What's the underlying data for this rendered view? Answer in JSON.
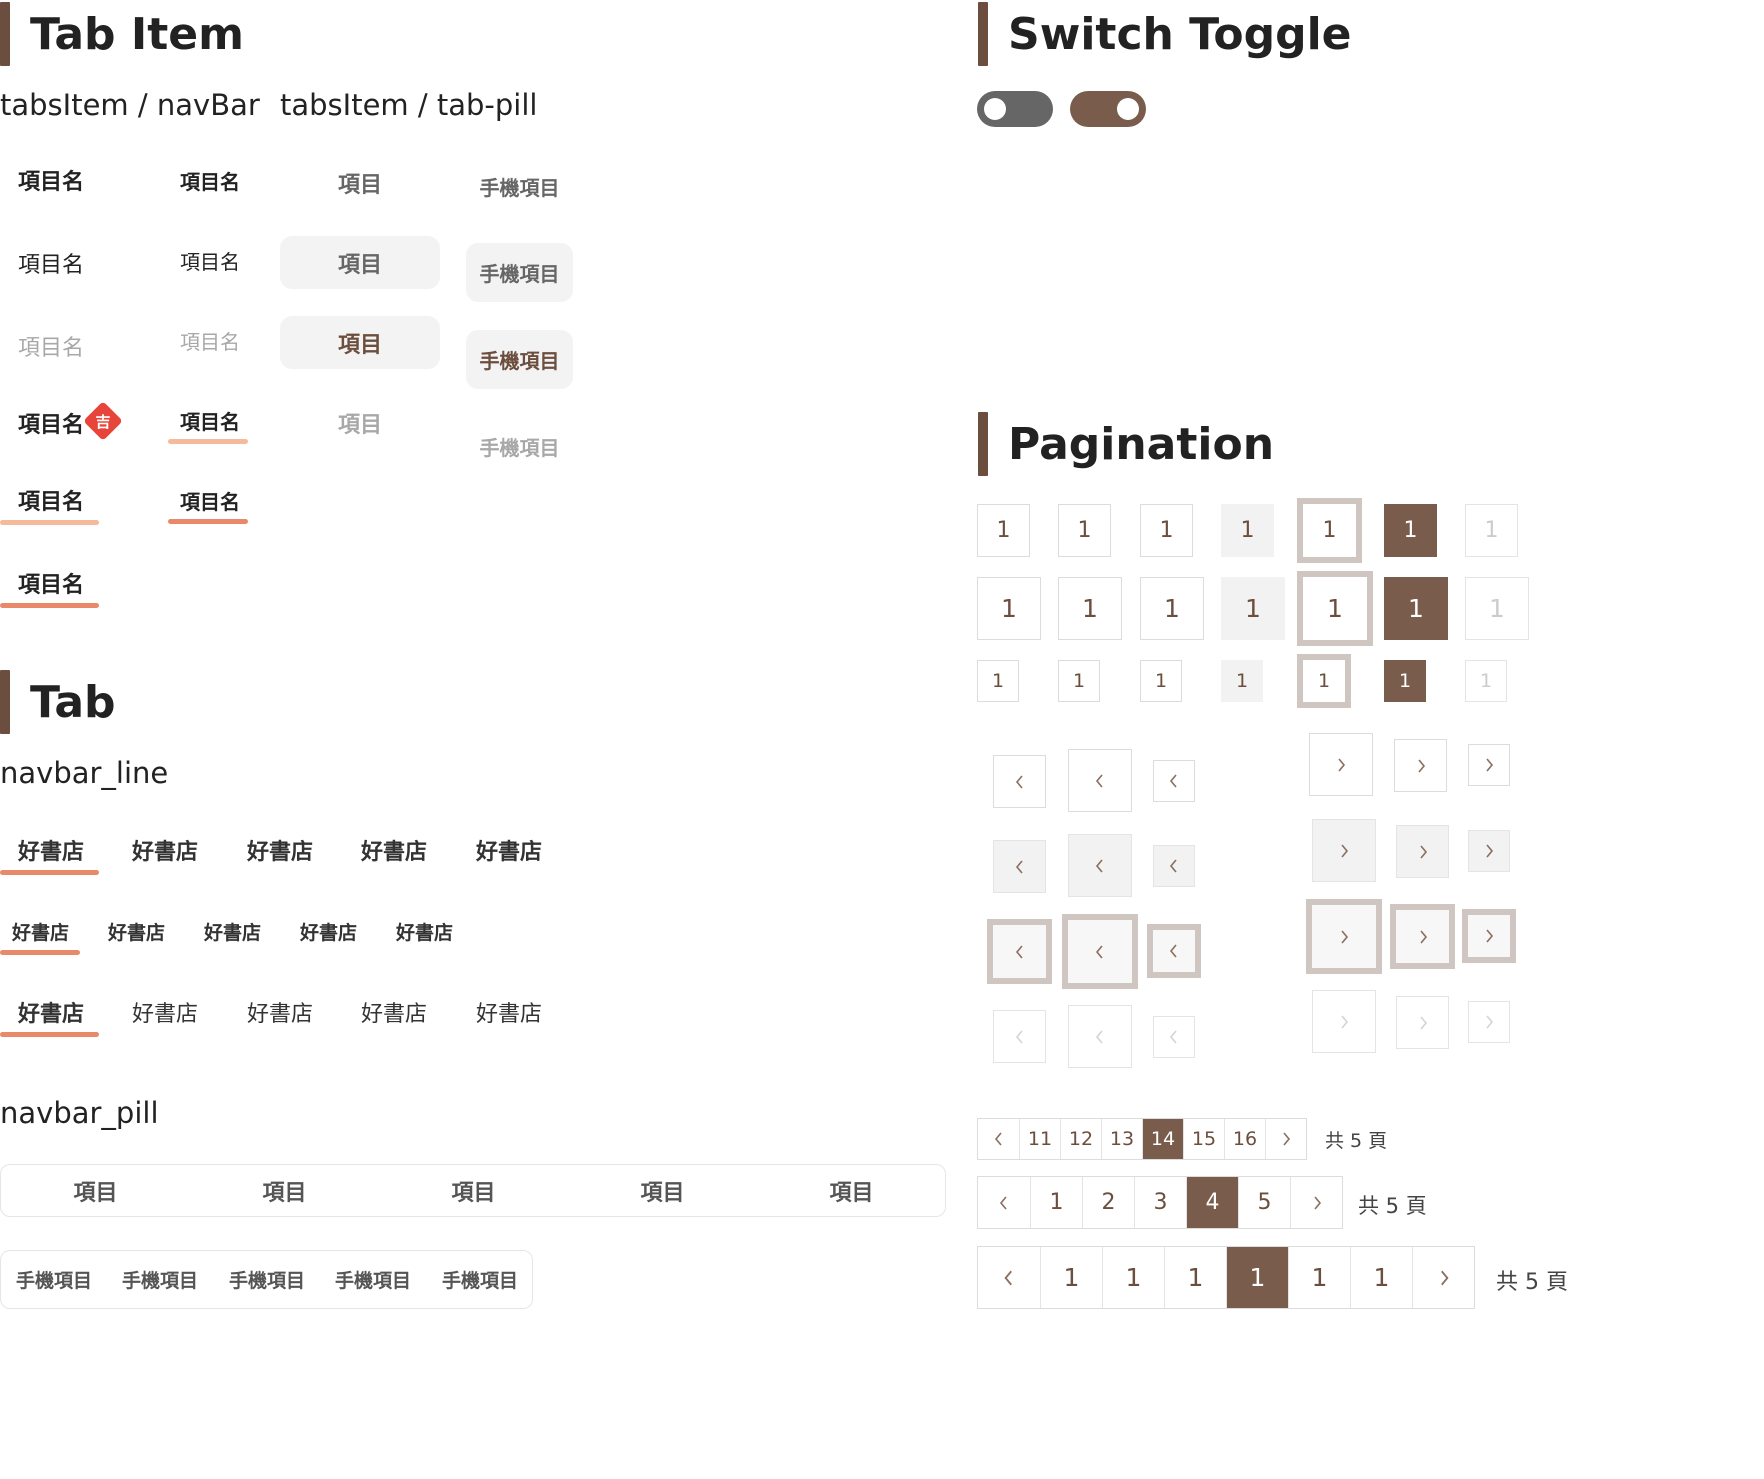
{
  "sections": {
    "tab_item": "Tab Item",
    "switch_toggle": "Switch Toggle",
    "pagination": "Pagination",
    "tab": "Tab"
  },
  "subtitles": {
    "tabs_navbar": "tabsItem / navBar",
    "tabs_pill": "tabsItem / tab-pill",
    "navbar_line": "navbar_line",
    "navbar_pill": "navbar_pill"
  },
  "tab_item": {
    "label": "項目名",
    "badge": "吉",
    "pill_label": "項目",
    "pill_mobile_label": "手機項目"
  },
  "switches": {
    "off_color": "#666666",
    "on_color": "#7a5c4c"
  },
  "navbar_line": {
    "tabs": [
      "好書店",
      "好書店",
      "好書店",
      "好書店",
      "好書店"
    ]
  },
  "navbar_pill": {
    "row1": [
      "項目",
      "項目",
      "項目",
      "項目",
      "項目"
    ],
    "row2": [
      "手機項目",
      "手機項目",
      "手機項目",
      "手機項目",
      "手機項目"
    ]
  },
  "pagination": {
    "digit": "1",
    "group1": {
      "pages": [
        "11",
        "12",
        "13",
        "14",
        "15",
        "16"
      ],
      "active": "14",
      "total": "共 5 頁"
    },
    "group2": {
      "pages": [
        "1",
        "2",
        "3",
        "4",
        "5"
      ],
      "active": "4",
      "total": "共 5 頁"
    },
    "group3": {
      "pages": [
        "1",
        "1",
        "1",
        "1",
        "1",
        "1"
      ],
      "active_index": 3,
      "total": "共 5 頁"
    }
  },
  "colors": {
    "brand": "#6b4e3d",
    "underline_light": "#f5b99c",
    "underline_dark": "#e8896a",
    "badge": "#e8453a"
  }
}
